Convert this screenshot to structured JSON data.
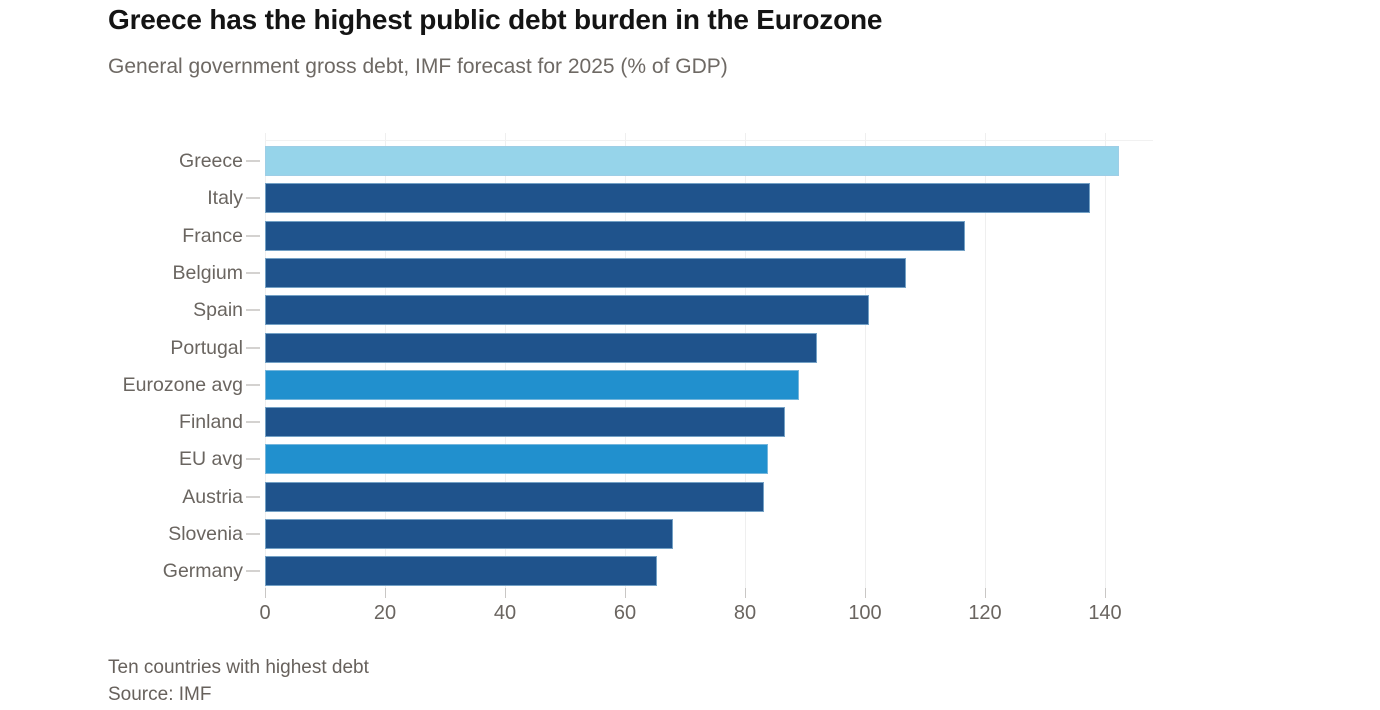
{
  "chart_data": {
    "type": "bar",
    "orientation": "horizontal",
    "title": "Greece has the highest public debt burden in the Eurozone",
    "subtitle": "General government gross debt, IMF forecast for 2025 (% of GDP)",
    "note": "Ten countries with highest debt",
    "source": "Source: IMF",
    "xlabel": "",
    "ylabel": "",
    "unit": "% of GDP",
    "x_ticks": [
      0,
      20,
      40,
      60,
      80,
      100,
      120,
      140
    ],
    "xlim": [
      0,
      148
    ],
    "grid": "vertical-only",
    "legend": "none",
    "colors": {
      "highlight": "#96d4ea",
      "default": "#1f538c",
      "average": "#2190ce",
      "gridline": "#efefef",
      "text": "#6a6560",
      "title": "#141414"
    },
    "categories": [
      "Greece",
      "Italy",
      "France",
      "Belgium",
      "Spain",
      "Portugal",
      "Eurozone avg",
      "Finland",
      "EU avg",
      "Austria",
      "Slovenia",
      "Germany"
    ],
    "values": [
      142.3,
      137.5,
      116.6,
      106.8,
      100.6,
      92.0,
      89.0,
      86.6,
      83.9,
      83.1,
      68.0,
      65.4
    ],
    "bars": [
      {
        "label": "Greece",
        "value": 142.3,
        "role": "highlight"
      },
      {
        "label": "Italy",
        "value": 137.5,
        "role": "default"
      },
      {
        "label": "France",
        "value": 116.6,
        "role": "default"
      },
      {
        "label": "Belgium",
        "value": 106.8,
        "role": "default"
      },
      {
        "label": "Spain",
        "value": 100.6,
        "role": "default"
      },
      {
        "label": "Portugal",
        "value": 92.0,
        "role": "default"
      },
      {
        "label": "Eurozone avg",
        "value": 89.0,
        "role": "average"
      },
      {
        "label": "Finland",
        "value": 86.6,
        "role": "default"
      },
      {
        "label": "EU avg",
        "value": 83.9,
        "role": "average"
      },
      {
        "label": "Austria",
        "value": 83.1,
        "role": "default"
      },
      {
        "label": "Slovenia",
        "value": 68.0,
        "role": "default"
      },
      {
        "label": "Germany",
        "value": 65.4,
        "role": "default"
      }
    ]
  }
}
